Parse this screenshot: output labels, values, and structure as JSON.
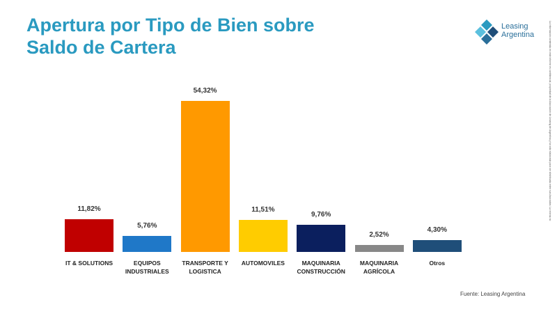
{
  "logo": "Leasing Argentina",
  "disclaimer": "La información contenida en este informe es confidencial, propiedad de la Asociación de Leasing de Argentina y ha sido elaborada para ser distribuida entre sus Asociados. La misma no",
  "chart_data": {
    "type": "bar",
    "title": "Apertura por Tipo de Bien sobre Saldo de Cartera",
    "source": "Fuente: Leasing Argentina",
    "categories": [
      "IT & SOLUTIONS",
      "EQUIPOS INDUSTRIALES",
      "TRANSPORTE Y LOGISTICA",
      "AUTOMOVILES",
      "MAQUINARIA CONSTRUCCIÓN",
      "MAQUINARIA AGRÍCOLA",
      "Otros"
    ],
    "values": [
      11.82,
      5.76,
      54.32,
      11.51,
      9.76,
      2.52,
      4.3
    ],
    "value_labels": [
      "11,82%",
      "5,76%",
      "54,32%",
      "11,51%",
      "9,76%",
      "2,52%",
      "4,30%"
    ],
    "colors": [
      "#c00000",
      "#1f78c8",
      "#ff9900",
      "#ffcc00",
      "#0b1f5e",
      "#888888",
      "#1f4e79"
    ]
  }
}
